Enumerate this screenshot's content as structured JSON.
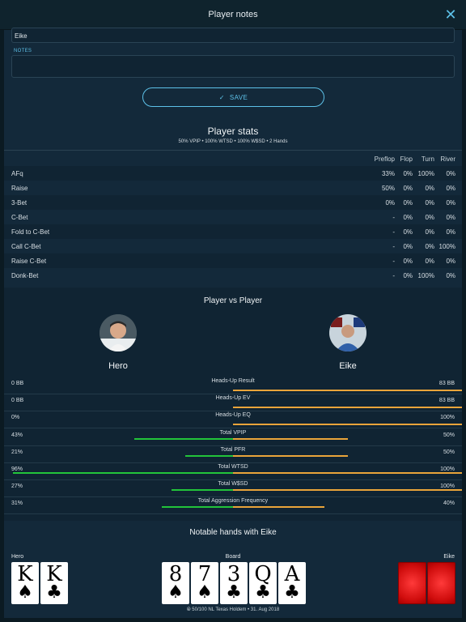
{
  "header": {
    "title": "Player notes"
  },
  "form": {
    "name_value": "Eike",
    "notes_label": "NOTES",
    "notes_value": "",
    "save_label": "SAVE"
  },
  "stats": {
    "title": "Player stats",
    "subtitle": "50% VPIP • 100% WTSD • 100% W$SD • 2 Hands",
    "columns": [
      "Preflop",
      "Flop",
      "Turn",
      "River"
    ],
    "rows": [
      {
        "label": "AFq",
        "preflop": "33%",
        "flop": "0%",
        "turn": "100%",
        "river": "0%"
      },
      {
        "label": "Raise",
        "preflop": "50%",
        "flop": "0%",
        "turn": "0%",
        "river": "0%"
      },
      {
        "label": "3-Bet",
        "preflop": "0%",
        "flop": "0%",
        "turn": "0%",
        "river": "0%"
      },
      {
        "label": "C-Bet",
        "preflop": "-",
        "flop": "0%",
        "turn": "0%",
        "river": "0%"
      },
      {
        "label": "Fold to C-Bet",
        "preflop": "-",
        "flop": "0%",
        "turn": "0%",
        "river": "0%"
      },
      {
        "label": "Call C-Bet",
        "preflop": "-",
        "flop": "0%",
        "turn": "0%",
        "river": "100%"
      },
      {
        "label": "Raise C-Bet",
        "preflop": "-",
        "flop": "0%",
        "turn": "0%",
        "river": "0%"
      },
      {
        "label": "Donk-Bet",
        "preflop": "-",
        "flop": "0%",
        "turn": "100%",
        "river": "0%"
      }
    ]
  },
  "pvp": {
    "title": "Player vs Player",
    "hero_name": "Hero",
    "villain_name": "Eike",
    "colors": {
      "hero": "#22c43a",
      "villain": "#e9a43a"
    },
    "rows": [
      {
        "label": "Heads-Up Result",
        "left": "0 BB",
        "right": "83 BB",
        "hero_fraction": 0.0,
        "villain_fraction": 1.0
      },
      {
        "label": "Heads-Up EV",
        "left": "0 BB",
        "right": "83 BB",
        "hero_fraction": 0.0,
        "villain_fraction": 1.0
      },
      {
        "label": "Heads-Up EQ",
        "left": "0%",
        "right": "100%",
        "hero_fraction": 0.0,
        "villain_fraction": 1.0
      },
      {
        "label": "Total VPIP",
        "left": "43%",
        "right": "50%",
        "hero_fraction": 0.43,
        "villain_fraction": 0.5
      },
      {
        "label": "Total PFR",
        "left": "21%",
        "right": "50%",
        "hero_fraction": 0.21,
        "villain_fraction": 0.5
      },
      {
        "label": "Total WTSD",
        "left": "96%",
        "right": "100%",
        "hero_fraction": 0.96,
        "villain_fraction": 1.0
      },
      {
        "label": "Total W$SD",
        "left": "27%",
        "right": "100%",
        "hero_fraction": 0.27,
        "villain_fraction": 1.0
      },
      {
        "label": "Total Aggression Frequency",
        "left": "31%",
        "right": "40%",
        "hero_fraction": 0.31,
        "villain_fraction": 0.4
      }
    ]
  },
  "notable": {
    "title": "Notable hands with Eike",
    "hero_label": "Hero",
    "board_label": "Board",
    "villain_label": "Eike",
    "hero_cards": [
      {
        "rank": "K",
        "suit": "♠"
      },
      {
        "rank": "K",
        "suit": "♣"
      }
    ],
    "board_cards": [
      {
        "rank": "8",
        "suit": "♠"
      },
      {
        "rank": "7",
        "suit": "♠"
      },
      {
        "rank": "3",
        "suit": "♣"
      },
      {
        "rank": "Q",
        "suit": "♣"
      },
      {
        "rank": "A",
        "suit": "♣"
      }
    ],
    "footer": "⦾ 50/100 NL Texas Holdem • 31. Aug 2018"
  }
}
